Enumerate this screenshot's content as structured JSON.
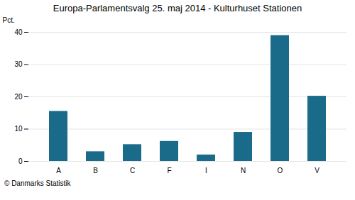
{
  "chart_data": {
    "type": "bar",
    "title": "Europa-Parlamentsvalg 25. maj 2014 - Kulturhuset Stationen",
    "ylabel": "Pct.",
    "annotations": [
      "© Danmarks Statistik"
    ],
    "categories": [
      "A",
      "B",
      "C",
      "F",
      "I",
      "N",
      "O",
      "V"
    ],
    "values": [
      15.5,
      3.0,
      5.2,
      6.2,
      2.0,
      9.0,
      39.0,
      20.2
    ],
    "color": "#1a6b8a",
    "ylim": [
      0,
      40
    ],
    "yticks": [
      0,
      10,
      20,
      30,
      40
    ],
    "grid": true
  }
}
